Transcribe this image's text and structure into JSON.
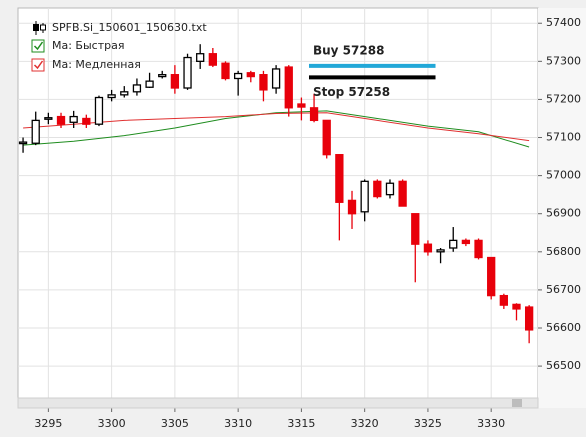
{
  "chart_data": {
    "type": "candlestick",
    "legend": [
      "SPFB.Si_150601_150630.txt",
      "Ma: Быстрая",
      "Ma: Медленная"
    ],
    "candles": {
      "name": "SPFB.Si_150601_150630.txt",
      "up_color": "#ffffff",
      "down_color": "#e8000b",
      "x": [
        3293,
        3294,
        3295,
        3296,
        3297,
        3298,
        3299,
        3300,
        3301,
        3302,
        3303,
        3304,
        3305,
        3306,
        3307,
        3308,
        3309,
        3310,
        3311,
        3312,
        3313,
        3314,
        3315,
        3316,
        3317,
        3318,
        3319,
        3320,
        3321,
        3322,
        3323,
        3324,
        3325,
        3326,
        3327,
        3328,
        3329,
        3330,
        3331,
        3332,
        3333
      ],
      "open": [
        57085,
        57085,
        57148,
        57155,
        57140,
        57150,
        57135,
        57205,
        57212,
        57220,
        57232,
        57260,
        57265,
        57230,
        57300,
        57320,
        57295,
        57255,
        57270,
        57265,
        57230,
        57285,
        57188,
        57178,
        57145,
        57055,
        56935,
        56905,
        56985,
        56950,
        56985,
        56900,
        56820,
        56800,
        56810,
        56830,
        56830,
        56785,
        56685,
        56662,
        56655
      ],
      "high": [
        57100,
        57168,
        57165,
        57165,
        57170,
        57160,
        57210,
        57225,
        57235,
        57255,
        57270,
        57275,
        57290,
        57320,
        57345,
        57335,
        57300,
        57275,
        57275,
        57275,
        57290,
        57290,
        57205,
        57215,
        57145,
        57055,
        56960,
        56990,
        56990,
        56990,
        56990,
        56900,
        56830,
        56810,
        56865,
        56835,
        56835,
        56785,
        56690,
        56665,
        56660
      ],
      "low": [
        57060,
        57080,
        57135,
        57125,
        57125,
        57125,
        57130,
        57195,
        57205,
        57210,
        57230,
        57255,
        57215,
        57225,
        57280,
        57285,
        57250,
        57210,
        57245,
        57195,
        57215,
        57155,
        57145,
        57140,
        57045,
        56830,
        56860,
        56880,
        56940,
        56940,
        56920,
        56720,
        56790,
        56770,
        56800,
        56815,
        56780,
        56675,
        56650,
        56620,
        56560
      ],
      "close": [
        57088,
        57145,
        57152,
        57135,
        57155,
        57135,
        57205,
        57212,
        57220,
        57238,
        57248,
        57265,
        57230,
        57310,
        57320,
        57290,
        57255,
        57268,
        57260,
        57225,
        57280,
        57178,
        57180,
        57145,
        57055,
        56930,
        56900,
        56985,
        56945,
        56980,
        56920,
        56820,
        56800,
        56805,
        56830,
        56822,
        56785,
        56685,
        56660,
        56650,
        56595
      ]
    },
    "series": [
      {
        "name": "Ma: Быстрая",
        "color": "#1e8c1e",
        "x": [
          3293,
          3297,
          3301,
          3305,
          3309,
          3313,
          3317,
          3321,
          3325,
          3329,
          3333
        ],
        "values": [
          57080,
          57090,
          57105,
          57125,
          57150,
          57165,
          57170,
          57150,
          57130,
          57115,
          57075
        ]
      },
      {
        "name": "Ma: Медленная",
        "color": "#e03030",
        "x": [
          3293,
          3297,
          3301,
          3305,
          3309,
          3313,
          3317,
          3321,
          3325,
          3329,
          3333
        ],
        "values": [
          57125,
          57135,
          57145,
          57150,
          57155,
          57163,
          57165,
          57145,
          57125,
          57110,
          57092
        ]
      }
    ],
    "levels": [
      {
        "label": "Buy 57288",
        "value": 57288,
        "x": [
          3315.6,
          3325.6
        ],
        "color": "#22a8d8"
      },
      {
        "label": "Stop 57258",
        "value": 57258,
        "x": [
          3315.6,
          3325.6
        ],
        "color": "#000000"
      }
    ],
    "xlim": [
      3292.6,
      3333.7
    ],
    "xticks": [
      3295,
      3300,
      3305,
      3310,
      3315,
      3320,
      3325,
      3330
    ],
    "ylim": [
      56390,
      57440
    ],
    "yticks": [
      56500,
      56600,
      56700,
      56800,
      56900,
      57000,
      57100,
      57200,
      57300,
      57400
    ],
    "grid": true
  }
}
